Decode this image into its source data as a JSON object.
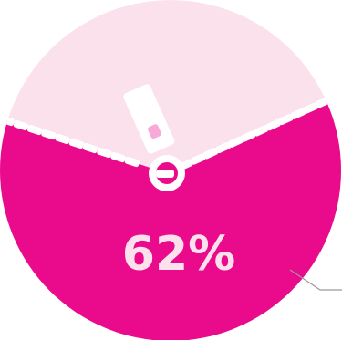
{
  "chart_data": {
    "type": "pie",
    "values": [
      62,
      38
    ],
    "percent_label": "62%",
    "colors": {
      "filled": "#ea0a8c",
      "remaining": "#fbe1ec",
      "label_text": "#fbe1ec",
      "zipper": "#ffffff",
      "leader_line": "#9a9a9a"
    },
    "title": "",
    "legend": "none"
  }
}
